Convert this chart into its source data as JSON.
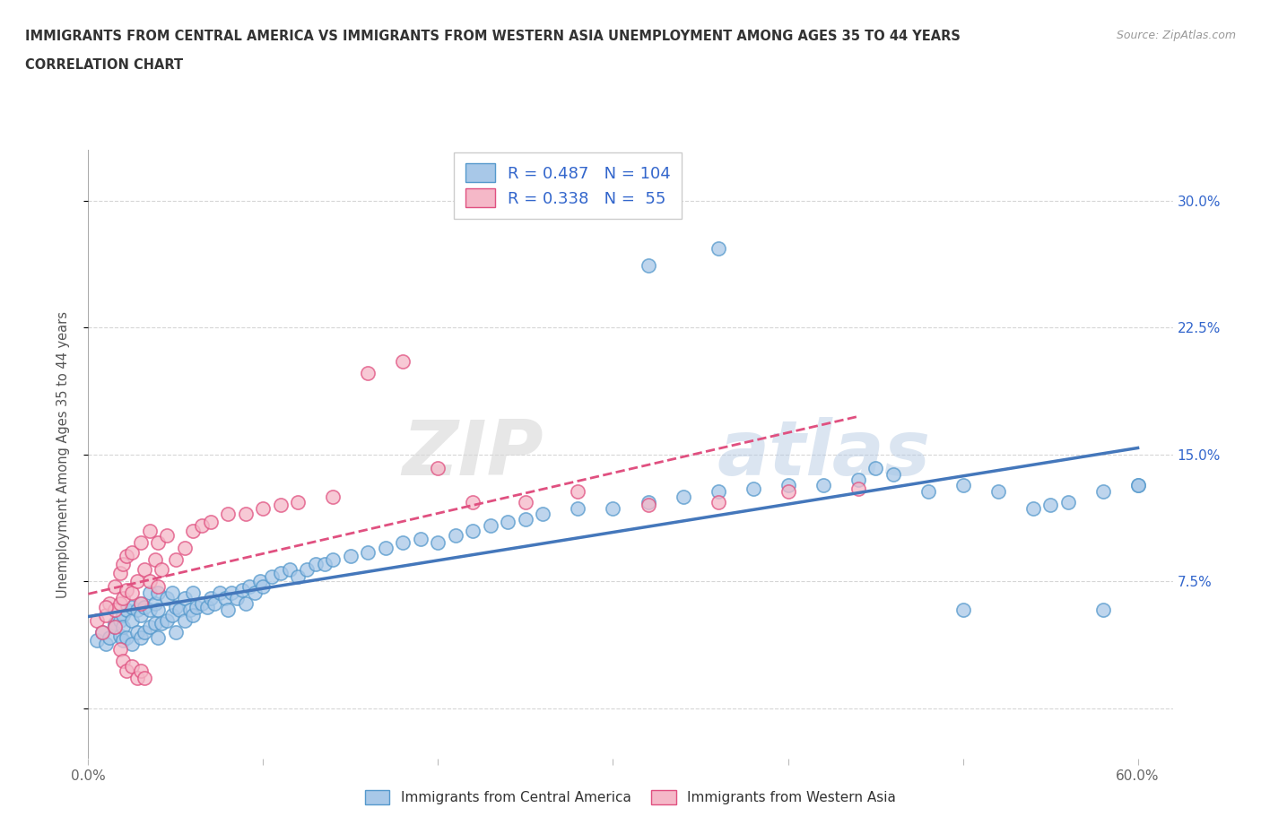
{
  "title_line1": "IMMIGRANTS FROM CENTRAL AMERICA VS IMMIGRANTS FROM WESTERN ASIA UNEMPLOYMENT AMONG AGES 35 TO 44 YEARS",
  "title_line2": "CORRELATION CHART",
  "source": "Source: ZipAtlas.com",
  "ylabel": "Unemployment Among Ages 35 to 44 years",
  "xlim": [
    0.0,
    0.62
  ],
  "ylim": [
    -0.03,
    0.33
  ],
  "xticks": [
    0.0,
    0.1,
    0.2,
    0.3,
    0.4,
    0.5,
    0.6
  ],
  "yticks": [
    0.0,
    0.075,
    0.15,
    0.225,
    0.3
  ],
  "yticklabels": [
    "",
    "7.5%",
    "15.0%",
    "22.5%",
    "30.0%"
  ],
  "grid_color": "#cccccc",
  "background_color": "#ffffff",
  "watermark_zip": "ZIP",
  "watermark_atlas": "atlas",
  "legend_R1": "0.487",
  "legend_N1": "104",
  "legend_R2": "0.338",
  "legend_N2": " 55",
  "color_blue_fill": "#a8c8e8",
  "color_blue_edge": "#5599cc",
  "color_pink_fill": "#f5b8c8",
  "color_pink_edge": "#e05080",
  "color_blue_line": "#4477bb",
  "color_pink_line": "#e05080",
  "color_text_blue": "#3366cc",
  "color_text_dark": "#222222",
  "label1": "Immigrants from Central America",
  "label2": "Immigrants from Western Asia",
  "blue_points_x": [
    0.005,
    0.008,
    0.01,
    0.012,
    0.015,
    0.015,
    0.018,
    0.018,
    0.02,
    0.02,
    0.02,
    0.022,
    0.022,
    0.025,
    0.025,
    0.025,
    0.028,
    0.028,
    0.03,
    0.03,
    0.03,
    0.032,
    0.032,
    0.035,
    0.035,
    0.035,
    0.038,
    0.038,
    0.04,
    0.04,
    0.04,
    0.042,
    0.045,
    0.045,
    0.048,
    0.048,
    0.05,
    0.05,
    0.052,
    0.055,
    0.055,
    0.058,
    0.06,
    0.06,
    0.062,
    0.065,
    0.068,
    0.07,
    0.072,
    0.075,
    0.078,
    0.08,
    0.082,
    0.085,
    0.088,
    0.09,
    0.092,
    0.095,
    0.098,
    0.1,
    0.105,
    0.11,
    0.115,
    0.12,
    0.125,
    0.13,
    0.135,
    0.14,
    0.15,
    0.16,
    0.17,
    0.18,
    0.19,
    0.2,
    0.21,
    0.22,
    0.23,
    0.24,
    0.25,
    0.26,
    0.28,
    0.3,
    0.32,
    0.34,
    0.36,
    0.38,
    0.4,
    0.42,
    0.44,
    0.46,
    0.48,
    0.5,
    0.52,
    0.54,
    0.56,
    0.58,
    0.6,
    0.32,
    0.36,
    0.45,
    0.55,
    0.5,
    0.58,
    0.6
  ],
  "blue_points_y": [
    0.04,
    0.045,
    0.038,
    0.042,
    0.05,
    0.048,
    0.043,
    0.052,
    0.04,
    0.055,
    0.048,
    0.042,
    0.058,
    0.038,
    0.052,
    0.06,
    0.045,
    0.058,
    0.042,
    0.055,
    0.062,
    0.045,
    0.06,
    0.048,
    0.058,
    0.068,
    0.05,
    0.062,
    0.042,
    0.058,
    0.068,
    0.05,
    0.052,
    0.065,
    0.055,
    0.068,
    0.045,
    0.06,
    0.058,
    0.052,
    0.065,
    0.058,
    0.055,
    0.068,
    0.06,
    0.062,
    0.06,
    0.065,
    0.062,
    0.068,
    0.065,
    0.058,
    0.068,
    0.065,
    0.07,
    0.062,
    0.072,
    0.068,
    0.075,
    0.072,
    0.078,
    0.08,
    0.082,
    0.078,
    0.082,
    0.085,
    0.085,
    0.088,
    0.09,
    0.092,
    0.095,
    0.098,
    0.1,
    0.098,
    0.102,
    0.105,
    0.108,
    0.11,
    0.112,
    0.115,
    0.118,
    0.118,
    0.122,
    0.125,
    0.128,
    0.13,
    0.132,
    0.132,
    0.135,
    0.138,
    0.128,
    0.132,
    0.128,
    0.118,
    0.122,
    0.128,
    0.132,
    0.262,
    0.272,
    0.142,
    0.12,
    0.058,
    0.058,
    0.132
  ],
  "pink_points_x": [
    0.005,
    0.008,
    0.01,
    0.012,
    0.015,
    0.015,
    0.018,
    0.018,
    0.02,
    0.02,
    0.022,
    0.022,
    0.025,
    0.025,
    0.028,
    0.03,
    0.03,
    0.032,
    0.035,
    0.035,
    0.038,
    0.04,
    0.04,
    0.042,
    0.045,
    0.05,
    0.055,
    0.06,
    0.065,
    0.07,
    0.08,
    0.09,
    0.1,
    0.11,
    0.12,
    0.14,
    0.16,
    0.18,
    0.2,
    0.22,
    0.25,
    0.28,
    0.32,
    0.36,
    0.4,
    0.44,
    0.01,
    0.015,
    0.018,
    0.02,
    0.022,
    0.025,
    0.028,
    0.03,
    0.032
  ],
  "pink_points_y": [
    0.052,
    0.045,
    0.055,
    0.062,
    0.058,
    0.072,
    0.062,
    0.08,
    0.065,
    0.085,
    0.07,
    0.09,
    0.068,
    0.092,
    0.075,
    0.062,
    0.098,
    0.082,
    0.075,
    0.105,
    0.088,
    0.072,
    0.098,
    0.082,
    0.102,
    0.088,
    0.095,
    0.105,
    0.108,
    0.11,
    0.115,
    0.115,
    0.118,
    0.12,
    0.122,
    0.125,
    0.198,
    0.205,
    0.142,
    0.122,
    0.122,
    0.128,
    0.12,
    0.122,
    0.128,
    0.13,
    0.06,
    0.048,
    0.035,
    0.028,
    0.022,
    0.025,
    0.018,
    0.022,
    0.018
  ]
}
